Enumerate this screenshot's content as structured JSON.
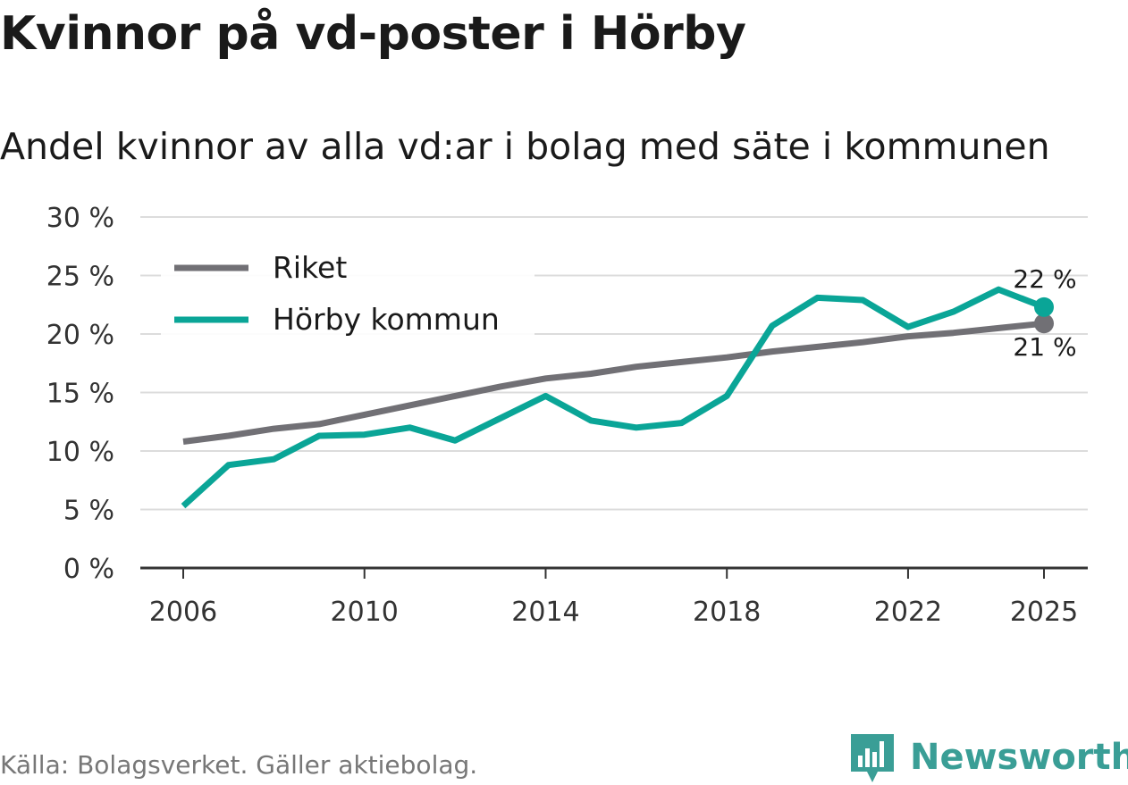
{
  "page": {
    "title": "Kvinnor på vd-poster i Hörby",
    "subtitle": "Andel kvinnor av alla vd:ar i bolag med säte i kommunen",
    "source": "Källa: Bolagsverket. Gäller aktiebolag.",
    "brand": "Newsworthy",
    "brand_color": "#3a9e96"
  },
  "chart_data": {
    "type": "line",
    "title": "Kvinnor på vd-poster i Hörby",
    "subtitle": "Andel kvinnor av alla vd:ar i bolag med säte i kommunen",
    "xlabel": "",
    "ylabel": "",
    "x": [
      2006,
      2007,
      2008,
      2009,
      2010,
      2011,
      2012,
      2013,
      2014,
      2015,
      2016,
      2017,
      2018,
      2019,
      2020,
      2021,
      2022,
      2023,
      2024,
      2025
    ],
    "xlim": [
      2006,
      2025
    ],
    "ylim": [
      0,
      30
    ],
    "x_ticks": [
      2006,
      2010,
      2014,
      2018,
      2022,
      2025
    ],
    "y_ticks": [
      0,
      5,
      10,
      15,
      20,
      25,
      30
    ],
    "y_tick_labels": [
      "0 %",
      "5 %",
      "10 %",
      "15 %",
      "20 %",
      "25 %",
      "30 %"
    ],
    "grid": true,
    "legend_position": "top-left",
    "series": [
      {
        "name": "Riket",
        "color": "#717075",
        "values": [
          10.8,
          11.3,
          11.9,
          12.3,
          13.1,
          13.9,
          14.7,
          15.5,
          16.2,
          16.6,
          17.2,
          17.6,
          18.0,
          18.5,
          18.9,
          19.3,
          19.8,
          20.1,
          20.5,
          20.9
        ],
        "end_label": "21 %"
      },
      {
        "name": "Hörby kommun",
        "color": "#0aa597",
        "values": [
          5.3,
          8.8,
          9.3,
          11.3,
          11.4,
          12.0,
          10.9,
          12.8,
          14.7,
          12.6,
          12.0,
          12.4,
          14.7,
          20.7,
          23.1,
          22.9,
          20.6,
          21.9,
          23.8,
          22.3
        ],
        "end_label": "22 %"
      }
    ]
  }
}
